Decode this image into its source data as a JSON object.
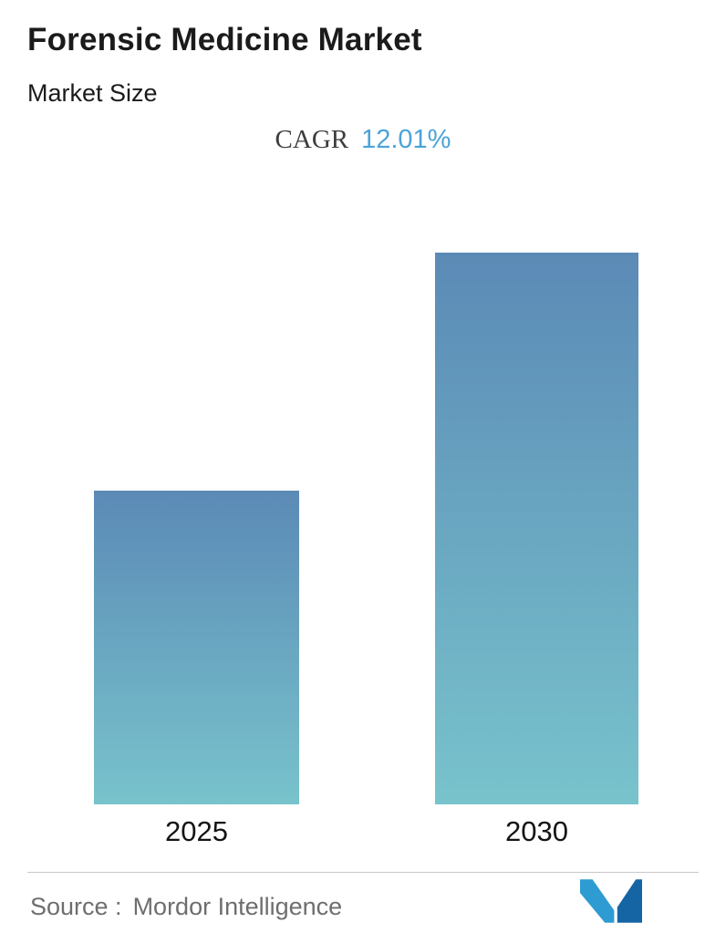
{
  "header": {
    "title": "Forensic Medicine Market",
    "subtitle": "Market Size"
  },
  "annotation": {
    "label": "CAGR",
    "value": "12.01%"
  },
  "chart_data": {
    "type": "bar",
    "title": "Forensic Medicine Market",
    "subtitle": "Market Size",
    "annotation": "CAGR 12.01%",
    "categories": [
      "2025",
      "2030"
    ],
    "values": [
      1,
      1.76
    ],
    "values_note": "relative heights; no y-axis or value labels shown; 2030 bar is ~1.76x the 2025 bar, consistent with 12.01% CAGR over 5 years",
    "xlabel": "",
    "ylabel": "",
    "ylim": [
      0,
      2
    ],
    "grid": false,
    "legend": false,
    "bar_gradient_top": "#5b8ab6",
    "bar_gradient_bottom": "#78c3cc",
    "annotation_value_color": "#4ba3d9"
  },
  "footer": {
    "source_label": "Source :",
    "source_name": "Mordor Intelligence",
    "logo": "mordor-intelligence-logo"
  }
}
